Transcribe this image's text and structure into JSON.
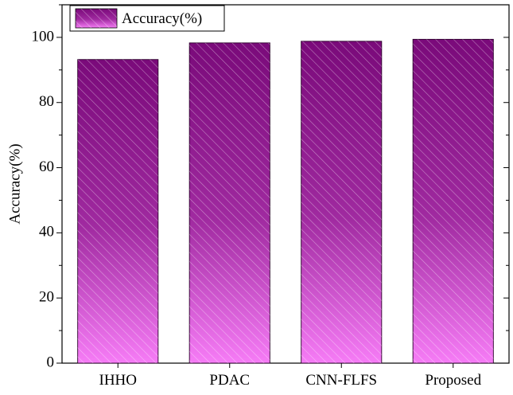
{
  "chart_data": {
    "type": "bar",
    "categories": [
      "IHHO",
      "PDAC",
      "CNN-FLFS",
      "Proposed"
    ],
    "series": [
      {
        "name": "Accuracy(%)",
        "values": [
          93.2,
          98.3,
          98.8,
          99.4
        ]
      }
    ],
    "ylabel": "Accuracy(%)",
    "xlabel": "",
    "ylim": [
      0,
      110
    ],
    "yticks": [
      0,
      20,
      40,
      60,
      80,
      100
    ],
    "grid": false,
    "legend_position": "top-left",
    "colors": {
      "bar_top": "#7a0a7a",
      "bar_bottom": "#f67cf6",
      "hatch": "#ffffff",
      "axis": "#000000"
    }
  }
}
